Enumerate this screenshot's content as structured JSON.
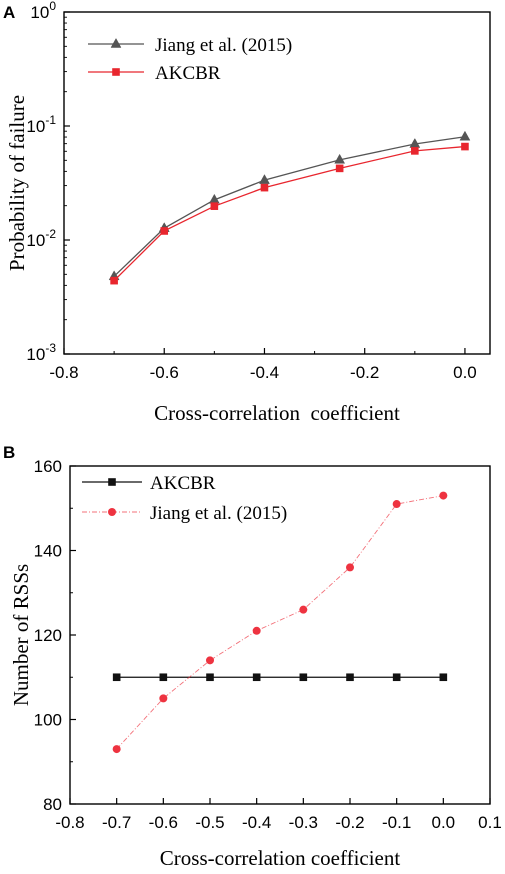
{
  "chart_data": [
    {
      "type": "line",
      "panel_label": "A",
      "title": "",
      "xlabel": "Cross-correlation  coefficient",
      "ylabel": "Probability of failure",
      "xlim": [
        -0.8,
        0.05
      ],
      "ylim": [
        0.001,
        1
      ],
      "yscale": "log",
      "x_ticks": [
        -0.8,
        -0.6,
        -0.4,
        -0.2,
        0.0
      ],
      "x_tick_labels": [
        "-0.8",
        "-0.6",
        "-0.4",
        "-0.2",
        "0.0"
      ],
      "y_ticks": [
        0.001,
        0.01,
        0.1,
        1
      ],
      "y_tick_labels": [
        {
          "base": "10",
          "exp": "-3"
        },
        {
          "base": "10",
          "exp": "-2"
        },
        {
          "base": "10",
          "exp": "-1"
        },
        {
          "base": "10",
          "exp": "0"
        }
      ],
      "grid": false,
      "legend_position": "top-left",
      "series": [
        {
          "name": "Jiang et al. (2015)",
          "marker": "triangle",
          "color": "#555555",
          "x": [
            -0.7,
            -0.6,
            -0.5,
            -0.4,
            -0.25,
            -0.1,
            0.0
          ],
          "values": [
            0.0048,
            0.0127,
            0.0225,
            0.0335,
            0.0505,
            0.0695,
            0.0805
          ]
        },
        {
          "name": "AKCBR",
          "marker": "square",
          "color": "#e8262e",
          "x": [
            -0.7,
            -0.6,
            -0.5,
            -0.4,
            -0.25,
            -0.1,
            0.0
          ],
          "values": [
            0.0044,
            0.012,
            0.0198,
            0.0288,
            0.0425,
            0.0605,
            0.066
          ]
        }
      ]
    },
    {
      "type": "line",
      "panel_label": "B",
      "title": "",
      "xlabel": "Cross-correlation coefficient",
      "ylabel": "Number of RSSs",
      "xlim": [
        -0.8,
        0.1
      ],
      "ylim": [
        80,
        160
      ],
      "x_ticks": [
        -0.8,
        -0.7,
        -0.6,
        -0.5,
        -0.4,
        -0.3,
        -0.2,
        -0.1,
        0.0,
        0.1
      ],
      "x_tick_labels": [
        "-0.8",
        "-0.7",
        "-0.6",
        "-0.5",
        "-0.4",
        "-0.3",
        "-0.2",
        "-0.1",
        "0.0",
        "0.1"
      ],
      "y_ticks": [
        80,
        100,
        120,
        140,
        160
      ],
      "y_tick_labels": [
        "80",
        "100",
        "120",
        "140",
        "160"
      ],
      "grid": false,
      "legend_position": "top-left",
      "series": [
        {
          "name": "AKCBR",
          "marker": "square",
          "color": "#111111",
          "line": "solid",
          "x": [
            -0.7,
            -0.6,
            -0.5,
            -0.4,
            -0.3,
            -0.2,
            -0.1,
            0.0
          ],
          "values": [
            110,
            110,
            110,
            110,
            110,
            110,
            110,
            110
          ]
        },
        {
          "name": "Jiang et al. (2015)",
          "marker": "circle",
          "color": "#ee3340",
          "line": "dash-dot",
          "x": [
            -0.7,
            -0.6,
            -0.5,
            -0.4,
            -0.3,
            -0.2,
            -0.1,
            0.0
          ],
          "values": [
            93,
            105,
            114,
            121,
            126,
            136,
            151,
            153
          ]
        }
      ]
    }
  ]
}
